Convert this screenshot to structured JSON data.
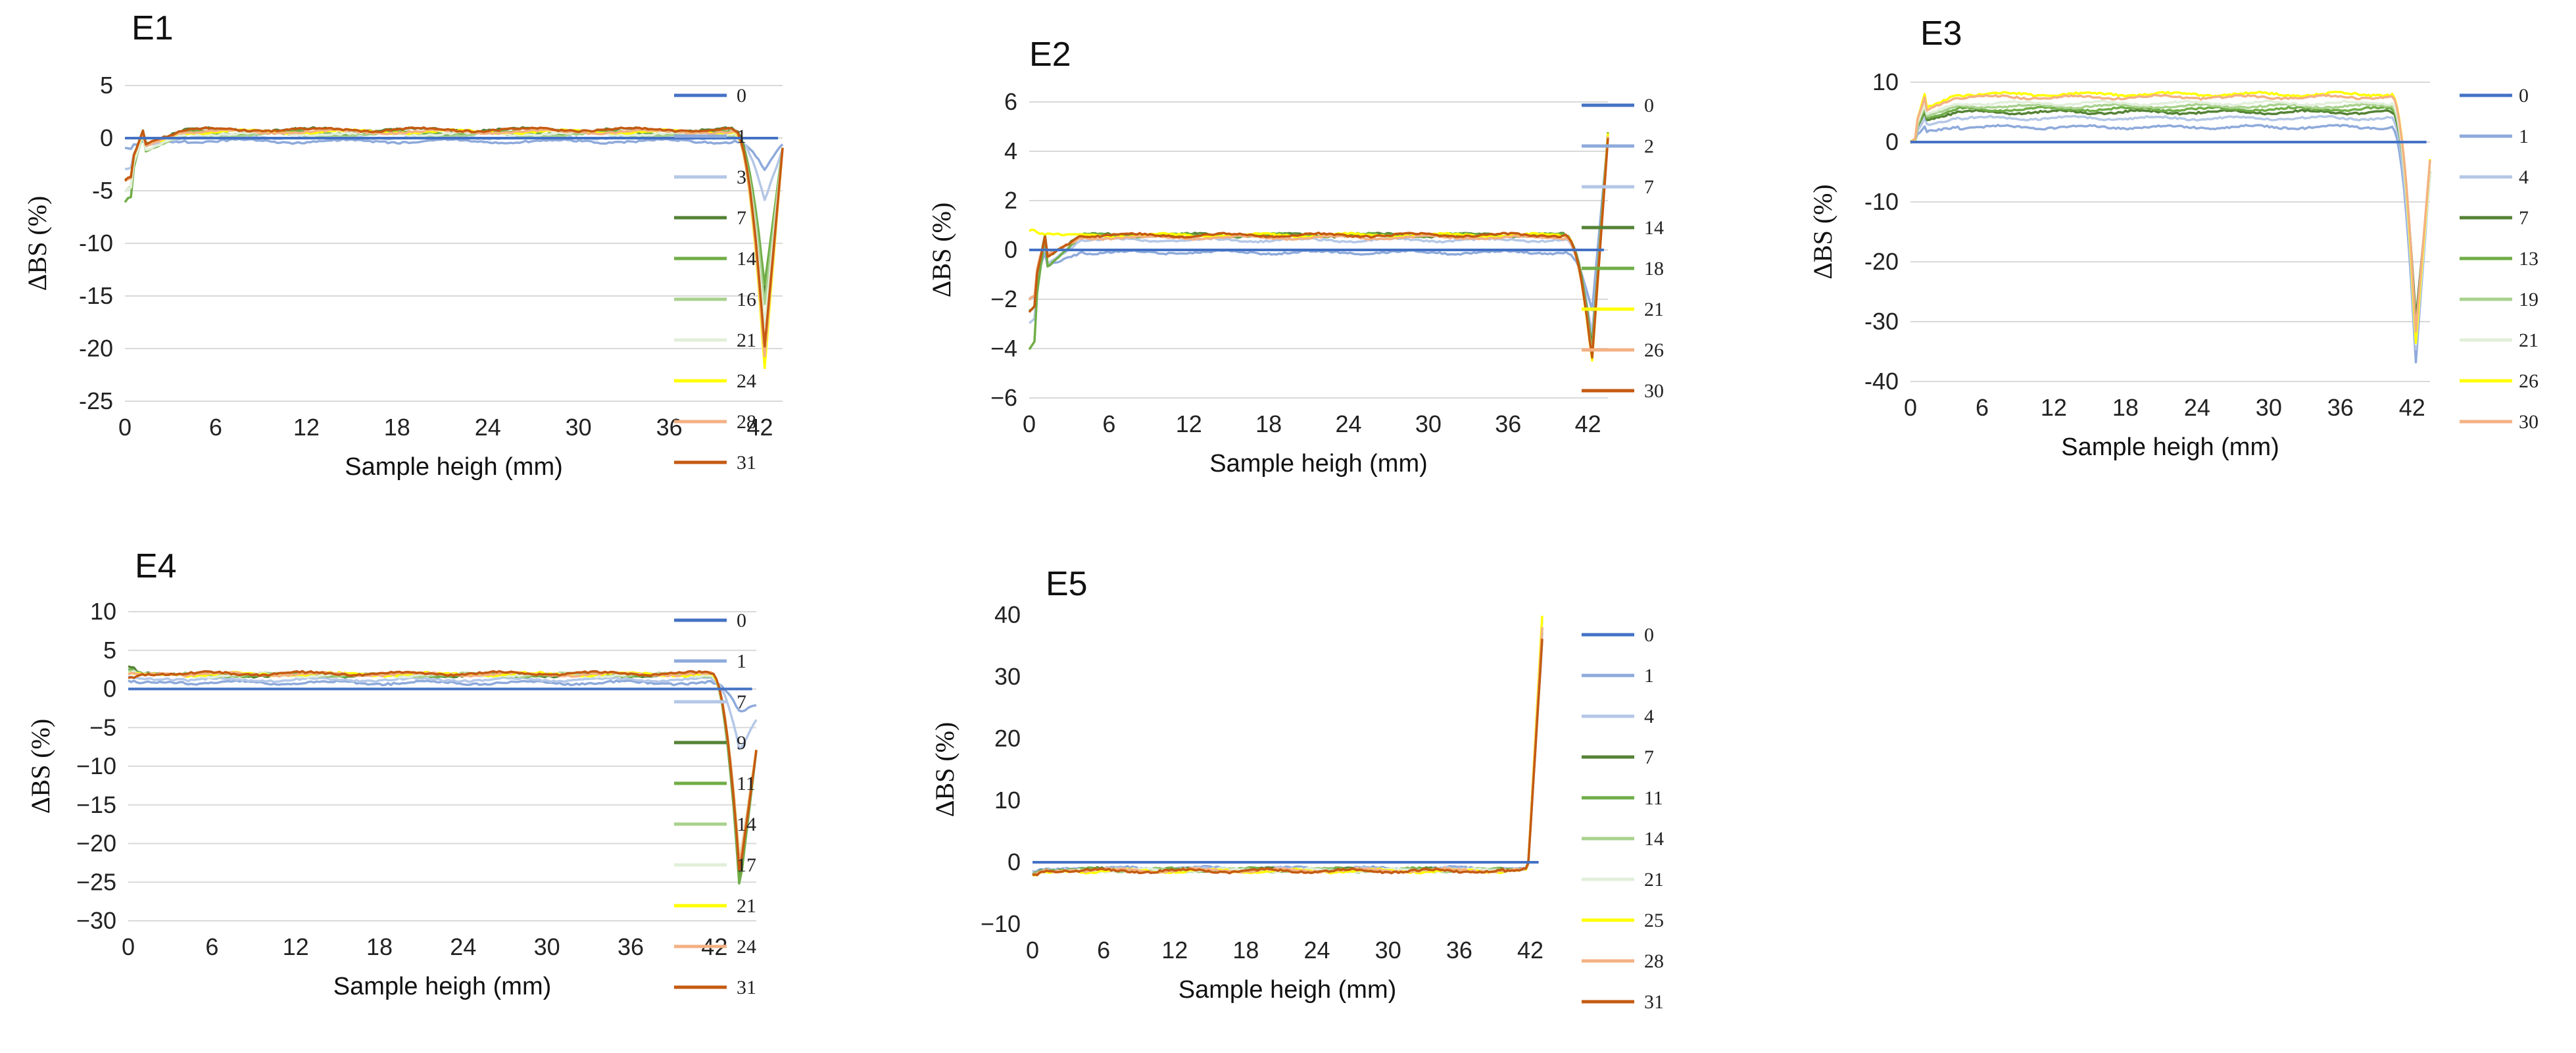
{
  "chart_data": [
    {
      "id": "E1",
      "type": "line",
      "title": "E1",
      "xlabel": "Sample heigh (mm)",
      "ylabel": "ΔBS  (%)",
      "xlim": [
        0,
        43.5
      ],
      "ylim": [
        -25,
        5
      ],
      "xticks": [
        0,
        6,
        12,
        18,
        24,
        30,
        36,
        42
      ],
      "yticks": [
        5,
        0,
        -5,
        -10,
        -15,
        -20,
        -25
      ],
      "ytick_labels": [
        "5",
        "0",
        "-5",
        "-10",
        "-15",
        "-20",
        "-25"
      ],
      "grid": true,
      "legend": "right",
      "series": [
        {
          "name": "0",
          "color": "#4472c4",
          "plateau": 0,
          "start": 0,
          "dip": 0,
          "end": 0
        },
        {
          "name": "1",
          "color": "#8eaadb",
          "plateau": -0.3,
          "start": -1,
          "dip": -3,
          "end": -0.5
        },
        {
          "name": "3",
          "color": "#b4c7e7",
          "plateau": 0.1,
          "start": -3,
          "dip": -6,
          "end": -1
        },
        {
          "name": "7",
          "color": "#548235",
          "plateau": 0.8,
          "start": -4,
          "dip": -15,
          "end": -1
        },
        {
          "name": "14",
          "color": "#70ad47",
          "plateau": 0.5,
          "start": -6,
          "dip": -14,
          "end": -1
        },
        {
          "name": "16",
          "color": "#a9d18e",
          "plateau": 0.3,
          "start": -5,
          "dip": -16,
          "end": -1
        },
        {
          "name": "21",
          "color": "#e2efda",
          "plateau": 0.4,
          "start": -5,
          "dip": -18,
          "end": -1
        },
        {
          "name": "24",
          "color": "#ffff00",
          "plateau": 0.6,
          "start": -4,
          "dip": -22,
          "end": -1
        },
        {
          "name": "28",
          "color": "#f4b183",
          "plateau": 0.6,
          "start": -4,
          "dip": -21,
          "end": -1
        },
        {
          "name": "31",
          "color": "#c55a11",
          "plateau": 0.8,
          "start": -4,
          "dip": -20,
          "end": -1
        }
      ]
    },
    {
      "id": "E2",
      "type": "line",
      "title": "E2",
      "xlabel": "Sample heigh (mm)",
      "ylabel": "ΔBS  (%)",
      "xlim": [
        0,
        43.5
      ],
      "ylim": [
        -6,
        6
      ],
      "xticks": [
        0,
        6,
        12,
        18,
        24,
        30,
        36,
        42
      ],
      "yticks": [
        6,
        4,
        2,
        0,
        -2,
        -4,
        -6
      ],
      "ytick_labels": [
        "6",
        "4",
        "2",
        "0",
        "−2",
        "−4",
        "−6"
      ],
      "grid": true,
      "legend": "right",
      "series": [
        {
          "name": "0",
          "color": "#4472c4",
          "plateau": 0,
          "start": 0,
          "dip": 0,
          "end": 0
        },
        {
          "name": "2",
          "color": "#8eaadb",
          "plateau": -0.1,
          "start": -2,
          "dip": -2.5,
          "end": 4.6
        },
        {
          "name": "7",
          "color": "#b4c7e7",
          "plateau": 0.4,
          "start": -3,
          "dip": -3.5,
          "end": 4.6
        },
        {
          "name": "14",
          "color": "#548235",
          "plateau": 0.6,
          "start": -2.5,
          "dip": -4,
          "end": 4.8
        },
        {
          "name": "18",
          "color": "#70ad47",
          "plateau": 0.6,
          "start": -4,
          "dip": -4.2,
          "end": 4.7
        },
        {
          "name": "21",
          "color": "#ffff00",
          "plateau": 0.6,
          "start": 0.8,
          "dip": -4.6,
          "end": 4.7
        },
        {
          "name": "26",
          "color": "#f4b183",
          "plateau": 0.5,
          "start": -2,
          "dip": -4.4,
          "end": 4.6
        },
        {
          "name": "30",
          "color": "#c55a11",
          "plateau": 0.6,
          "start": -2.5,
          "dip": -4.5,
          "end": 4.5
        }
      ]
    },
    {
      "id": "E3",
      "type": "line",
      "title": "E3",
      "xlabel": "Sample heigh (mm)",
      "ylabel": "ΔBS  (%)",
      "xlim": [
        0,
        43.5
      ],
      "ylim": [
        -40,
        10
      ],
      "xticks": [
        0,
        6,
        12,
        18,
        24,
        30,
        36,
        42
      ],
      "yticks": [
        10,
        0,
        -10,
        -20,
        -30,
        -40
      ],
      "ytick_labels": [
        "10",
        "0",
        "-10",
        "-20",
        "-30",
        "-40"
      ],
      "grid": true,
      "legend": "right",
      "series": [
        {
          "name": "0",
          "color": "#4472c4",
          "plateau": 0,
          "start": 0,
          "dip": 0,
          "end": 0
        },
        {
          "name": "1",
          "color": "#8eaadb",
          "plateau": 2.5,
          "start": 0,
          "dip": -37,
          "end": -5
        },
        {
          "name": "4",
          "color": "#b4c7e7",
          "plateau": 4,
          "start": 0,
          "dip": -35,
          "end": -5
        },
        {
          "name": "7",
          "color": "#548235",
          "plateau": 5,
          "start": 0,
          "dip": -30,
          "end": -5
        },
        {
          "name": "13",
          "color": "#70ad47",
          "plateau": 5.5,
          "start": 0,
          "dip": -32,
          "end": -5
        },
        {
          "name": "19",
          "color": "#a9d18e",
          "plateau": 6,
          "start": 0,
          "dip": -33,
          "end": -5
        },
        {
          "name": "21",
          "color": "#e2efda",
          "plateau": 6.5,
          "start": 0,
          "dip": -34,
          "end": -5
        },
        {
          "name": "26",
          "color": "#ffff00",
          "plateau": 8,
          "start": 0,
          "dip": -34,
          "end": -3
        },
        {
          "name": "30",
          "color": "#f4b183",
          "plateau": 7.5,
          "start": 0,
          "dip": -32,
          "end": -3
        }
      ]
    },
    {
      "id": "E4",
      "type": "line",
      "title": "E4",
      "xlabel": "Sample heigh (mm)",
      "ylabel": "ΔBS  (%)",
      "xlim": [
        0,
        45
      ],
      "ylim": [
        -30,
        10
      ],
      "xticks": [
        0,
        6,
        12,
        18,
        24,
        30,
        36,
        42
      ],
      "yticks": [
        10,
        5,
        0,
        -5,
        -10,
        -15,
        -20,
        -25,
        -30
      ],
      "ytick_labels": [
        "10",
        "5",
        "0",
        "−5",
        "−10",
        "−15",
        "−20",
        "−25",
        "−30"
      ],
      "grid": true,
      "legend": "right",
      "series": [
        {
          "name": "0",
          "color": "#4472c4",
          "plateau": 0,
          "start": 0,
          "dip": 0,
          "end": 0
        },
        {
          "name": "1",
          "color": "#8eaadb",
          "plateau": 0.8,
          "start": 1,
          "dip": -3,
          "end": -2
        },
        {
          "name": "7",
          "color": "#b4c7e7",
          "plateau": 1.2,
          "start": 1.5,
          "dip": -8,
          "end": -4
        },
        {
          "name": "9",
          "color": "#548235",
          "plateau": 1.8,
          "start": 2.8,
          "dip": -25,
          "end": -8
        },
        {
          "name": "11",
          "color": "#70ad47",
          "plateau": 1.8,
          "start": 2.6,
          "dip": -26,
          "end": -8
        },
        {
          "name": "14",
          "color": "#a9d18e",
          "plateau": 1.8,
          "start": 2.4,
          "dip": -24,
          "end": -8
        },
        {
          "name": "17",
          "color": "#e2efda",
          "plateau": 1.8,
          "start": 2.2,
          "dip": -22,
          "end": -8
        },
        {
          "name": "21",
          "color": "#ffff00",
          "plateau": 1.9,
          "start": 2.0,
          "dip": -23,
          "end": -8
        },
        {
          "name": "24",
          "color": "#f4b183",
          "plateau": 1.9,
          "start": 2.0,
          "dip": -23,
          "end": -8
        },
        {
          "name": "31",
          "color": "#c55a11",
          "plateau": 2.0,
          "start": 1.5,
          "dip": -24,
          "end": -8
        }
      ]
    },
    {
      "id": "E5",
      "type": "line",
      "title": "E5",
      "xlabel": "Sample heigh (mm)",
      "ylabel": "ΔBS  (%)",
      "xlim": [
        0,
        43
      ],
      "ylim": [
        -10,
        40
      ],
      "xticks": [
        0,
        6,
        12,
        18,
        24,
        30,
        36,
        42
      ],
      "yticks": [
        40,
        30,
        20,
        10,
        0,
        -10
      ],
      "ytick_labels": [
        "40",
        "30",
        "20",
        "10",
        "0",
        "−10"
      ],
      "grid": false,
      "legend": "right",
      "series": [
        {
          "name": "0",
          "color": "#4472c4",
          "plateau": 0,
          "start": 0,
          "dip": 0,
          "end": 0
        },
        {
          "name": "1",
          "color": "#8eaadb",
          "plateau": -1.0,
          "start": -1.5,
          "dip": -1,
          "end": 36
        },
        {
          "name": "4",
          "color": "#b4c7e7",
          "plateau": -1.1,
          "start": -1.5,
          "dip": -1,
          "end": 37
        },
        {
          "name": "7",
          "color": "#548235",
          "plateau": -1.2,
          "start": -1.8,
          "dip": -1,
          "end": 38
        },
        {
          "name": "11",
          "color": "#70ad47",
          "plateau": -1.2,
          "start": -1.8,
          "dip": -1,
          "end": 39
        },
        {
          "name": "14",
          "color": "#a9d18e",
          "plateau": -1.3,
          "start": -1.8,
          "dip": -1,
          "end": 39
        },
        {
          "name": "21",
          "color": "#e2efda",
          "plateau": -1.3,
          "start": -2.0,
          "dip": -1,
          "end": 39
        },
        {
          "name": "25",
          "color": "#ffff00",
          "plateau": -1.4,
          "start": -2.0,
          "dip": -1,
          "end": 40
        },
        {
          "name": "28",
          "color": "#f4b183",
          "plateau": -1.3,
          "start": -2.0,
          "dip": -1,
          "end": 38
        },
        {
          "name": "31",
          "color": "#c55a11",
          "plateau": -1.4,
          "start": -2.0,
          "dip": -1,
          "end": 36
        }
      ]
    }
  ]
}
